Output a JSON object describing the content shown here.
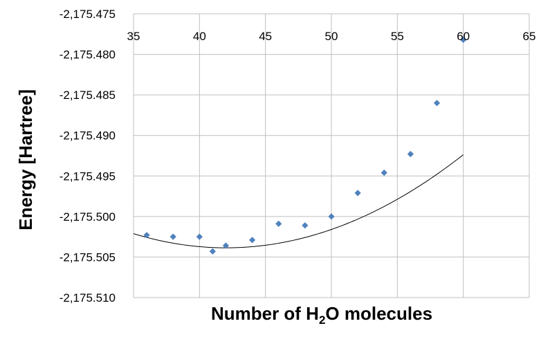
{
  "chart_data": {
    "type": "scatter",
    "xlabel": "Number of H₂O molecules",
    "xlabel_parts": {
      "pre": "Number of H",
      "sub": "2",
      "post": "O molecules"
    },
    "ylabel": "Energy [Hartree]",
    "xlim": [
      35,
      65
    ],
    "ylim": [
      -2175.51,
      -2175.475
    ],
    "x_ticks": [
      35,
      40,
      45,
      50,
      55,
      60,
      65
    ],
    "x_tick_labels": [
      "35",
      "40",
      "45",
      "50",
      "55",
      "60",
      "65"
    ],
    "y_ticks": [
      -2175.475,
      -2175.48,
      -2175.485,
      -2175.49,
      -2175.495,
      -2175.5,
      -2175.505,
      -2175.51
    ],
    "y_tick_labels": [
      "-2,175.475",
      "-2,175.480",
      "-2,175.485",
      "-2,175.490",
      "-2,175.495",
      "-2,175.500",
      "-2,175.505",
      "-2,175.510"
    ],
    "x_axis_position": "top",
    "grid": true,
    "legend": "none",
    "series": [
      {
        "marker": "diamond",
        "color": "#4F81BD",
        "points": [
          {
            "x": 36,
            "y": -2175.5023
          },
          {
            "x": 38,
            "y": -2175.5025
          },
          {
            "x": 40,
            "y": -2175.5025
          },
          {
            "x": 41,
            "y": -2175.5043
          },
          {
            "x": 42,
            "y": -2175.5036
          },
          {
            "x": 44,
            "y": -2175.5029
          },
          {
            "x": 46,
            "y": -2175.5009
          },
          {
            "x": 48,
            "y": -2175.5011
          },
          {
            "x": 50,
            "y": -2175.5
          },
          {
            "x": 52,
            "y": -2175.4971
          },
          {
            "x": 54,
            "y": -2175.4946
          },
          {
            "x": 56,
            "y": -2175.4923
          },
          {
            "x": 58,
            "y": -2175.486
          },
          {
            "x": 60,
            "y": -2175.4782
          }
        ]
      }
    ],
    "trendline": {
      "type": "polynomial",
      "order": 2,
      "color": "#000000",
      "x_range": [
        35,
        60
      ],
      "coefficients": [
        3.55e-05,
        -0.002983,
        -2175.4412
      ]
    }
  }
}
